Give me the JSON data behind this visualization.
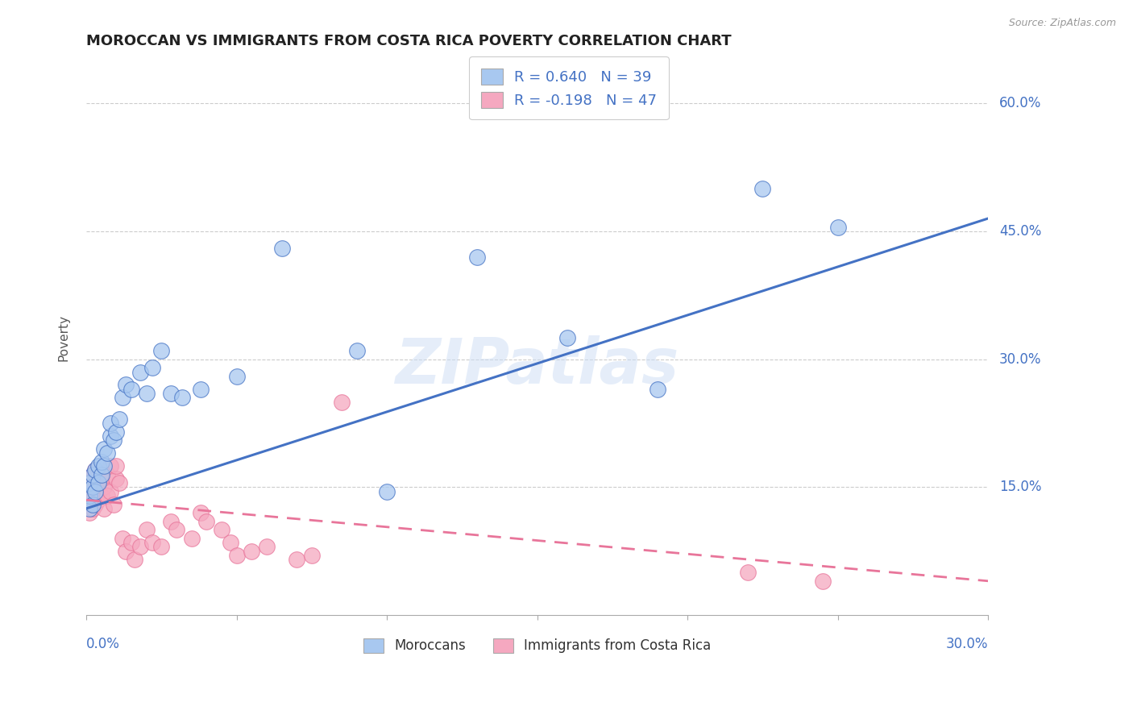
{
  "title": "MOROCCAN VS IMMIGRANTS FROM COSTA RICA POVERTY CORRELATION CHART",
  "source": "Source: ZipAtlas.com",
  "ylabel": "Poverty",
  "y_tick_labels": [
    "15.0%",
    "30.0%",
    "45.0%",
    "60.0%"
  ],
  "y_tick_values": [
    0.15,
    0.3,
    0.45,
    0.6
  ],
  "xlim": [
    0.0,
    0.3
  ],
  "ylim": [
    0.0,
    0.65
  ],
  "watermark": "ZIPatlas",
  "legend_blue_r": "R = 0.640",
  "legend_blue_n": "N = 39",
  "legend_pink_r": "R = -0.198",
  "legend_pink_n": "N = 47",
  "blue_color": "#A8C8F0",
  "pink_color": "#F5A8C0",
  "line_blue": "#4472C4",
  "line_pink": "#E8759A",
  "text_blue": "#4472C4",
  "moroccan_x": [
    0.001,
    0.001,
    0.001,
    0.002,
    0.002,
    0.002,
    0.003,
    0.003,
    0.004,
    0.004,
    0.005,
    0.005,
    0.006,
    0.006,
    0.007,
    0.008,
    0.008,
    0.009,
    0.01,
    0.011,
    0.012,
    0.013,
    0.015,
    0.018,
    0.02,
    0.022,
    0.025,
    0.028,
    0.032,
    0.038,
    0.05,
    0.065,
    0.09,
    0.1,
    0.13,
    0.16,
    0.19,
    0.225,
    0.25
  ],
  "moroccan_y": [
    0.125,
    0.14,
    0.155,
    0.13,
    0.15,
    0.165,
    0.145,
    0.17,
    0.155,
    0.175,
    0.165,
    0.18,
    0.175,
    0.195,
    0.19,
    0.21,
    0.225,
    0.205,
    0.215,
    0.23,
    0.255,
    0.27,
    0.265,
    0.285,
    0.26,
    0.29,
    0.31,
    0.26,
    0.255,
    0.265,
    0.28,
    0.43,
    0.31,
    0.145,
    0.42,
    0.325,
    0.265,
    0.5,
    0.455
  ],
  "costarica_x": [
    0.001,
    0.001,
    0.001,
    0.001,
    0.002,
    0.002,
    0.002,
    0.003,
    0.003,
    0.003,
    0.004,
    0.004,
    0.005,
    0.005,
    0.006,
    0.006,
    0.007,
    0.007,
    0.008,
    0.008,
    0.009,
    0.01,
    0.01,
    0.011,
    0.012,
    0.013,
    0.015,
    0.016,
    0.018,
    0.02,
    0.022,
    0.025,
    0.028,
    0.03,
    0.035,
    0.038,
    0.04,
    0.045,
    0.048,
    0.05,
    0.055,
    0.06,
    0.07,
    0.075,
    0.085,
    0.22,
    0.245
  ],
  "costarica_y": [
    0.12,
    0.13,
    0.145,
    0.16,
    0.125,
    0.14,
    0.165,
    0.13,
    0.15,
    0.17,
    0.135,
    0.155,
    0.14,
    0.16,
    0.125,
    0.15,
    0.14,
    0.165,
    0.145,
    0.175,
    0.13,
    0.16,
    0.175,
    0.155,
    0.09,
    0.075,
    0.085,
    0.065,
    0.08,
    0.1,
    0.085,
    0.08,
    0.11,
    0.1,
    0.09,
    0.12,
    0.11,
    0.1,
    0.085,
    0.07,
    0.075,
    0.08,
    0.065,
    0.07,
    0.25,
    0.05,
    0.04
  ],
  "blue_line_x": [
    0.0,
    0.3
  ],
  "blue_line_y": [
    0.125,
    0.465
  ],
  "pink_line_x": [
    0.0,
    0.3
  ],
  "pink_line_y": [
    0.135,
    0.04
  ]
}
